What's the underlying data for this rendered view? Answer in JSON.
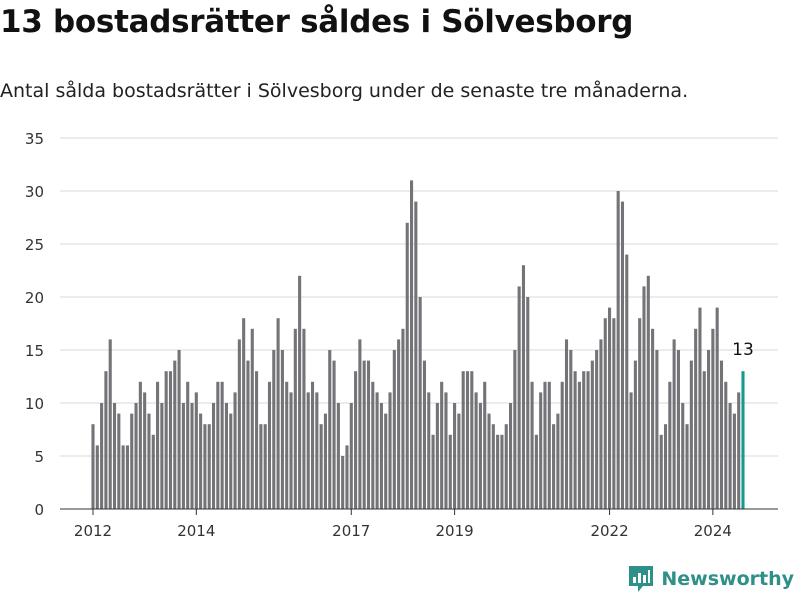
{
  "header": {
    "title": "13 bostadsrätter såldes i Sölvesborg",
    "subtitle": "Antal sålda bostadsrätter i Sölvesborg under de senaste tre månaderna."
  },
  "brand": {
    "name": "Newsworthy"
  },
  "colors": {
    "bar": "#747378",
    "highlight": "#179a8e",
    "grid": "#d9d9d9",
    "brand": "#2f8f89"
  },
  "chart_data": {
    "type": "bar",
    "title": "13 bostadsrätter såldes i Sölvesborg",
    "xlabel": "",
    "ylabel": "",
    "ylim": [
      0,
      35
    ],
    "yticks": [
      0,
      5,
      10,
      15,
      20,
      25,
      30,
      35
    ],
    "xticks": [
      {
        "label": "2012",
        "year": 2012
      },
      {
        "label": "2014",
        "year": 2014
      },
      {
        "label": "2017",
        "year": 2017
      },
      {
        "label": "2019",
        "year": 2019
      },
      {
        "label": "2022",
        "year": 2022
      },
      {
        "label": "2024",
        "year": 2024
      }
    ],
    "start_year": 2012,
    "values": [
      8,
      6,
      10,
      13,
      16,
      10,
      9,
      6,
      6,
      9,
      10,
      12,
      11,
      9,
      7,
      12,
      10,
      13,
      13,
      14,
      15,
      10,
      12,
      10,
      11,
      9,
      8,
      8,
      10,
      12,
      12,
      10,
      9,
      11,
      16,
      18,
      14,
      17,
      13,
      8,
      8,
      12,
      15,
      18,
      15,
      12,
      11,
      17,
      22,
      17,
      11,
      12,
      11,
      8,
      9,
      15,
      14,
      10,
      5,
      6,
      10,
      13,
      16,
      14,
      14,
      12,
      11,
      10,
      9,
      11,
      15,
      16,
      17,
      27,
      31,
      29,
      20,
      14,
      11,
      7,
      10,
      12,
      11,
      7,
      10,
      9,
      13,
      13,
      13,
      11,
      10,
      12,
      9,
      8,
      7,
      7,
      8,
      10,
      15,
      21,
      23,
      20,
      12,
      7,
      11,
      12,
      12,
      8,
      9,
      12,
      16,
      15,
      13,
      12,
      13,
      13,
      14,
      15,
      16,
      18,
      19,
      18,
      30,
      29,
      24,
      11,
      14,
      18,
      21,
      22,
      17,
      15,
      7,
      8,
      12,
      16,
      15,
      10,
      8,
      14,
      17,
      19,
      13,
      15,
      17,
      19,
      14,
      12,
      10,
      9,
      11,
      13
    ],
    "highlight_last": true,
    "data_label": "13"
  }
}
